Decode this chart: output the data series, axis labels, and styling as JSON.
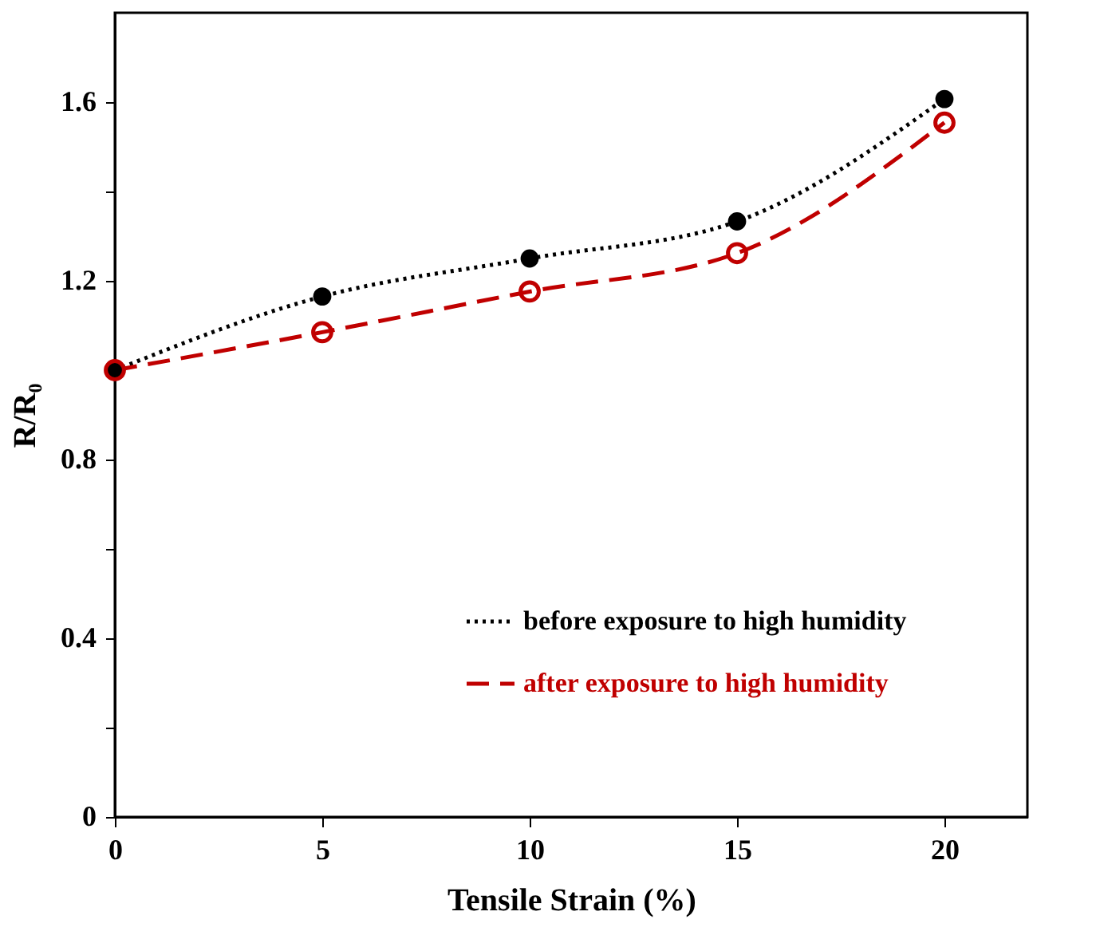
{
  "chart_data": {
    "type": "line",
    "xlabel": "Tensile Strain (%)",
    "ylabel": "R/R₀",
    "x": [
      0,
      5,
      10,
      15,
      20
    ],
    "series": [
      {
        "name": "before exposure to high humidity",
        "color": "#000000",
        "values": [
          1.0,
          1.165,
          1.25,
          1.333,
          1.607
        ],
        "marker": "circle",
        "line_style": "dotted"
      },
      {
        "name": "after exposure to high humidity",
        "color": "#c00000",
        "values": [
          1.0,
          1.085,
          1.176,
          1.262,
          1.554
        ],
        "marker": "circle",
        "line_style": "dashed"
      }
    ],
    "xlim": [
      0,
      22
    ],
    "xticks": [
      0,
      5,
      10,
      15,
      20
    ],
    "ylim": [
      0,
      1.8
    ],
    "yticks": [
      {
        "value": 0,
        "label": "0"
      },
      {
        "value": 0.2,
        "label": null
      },
      0.4,
      {
        "value": 0.6,
        "label": null
      },
      0.8,
      {
        "value": 1.0,
        "label": null
      },
      1.2,
      {
        "value": 1.4,
        "label": null
      },
      1.6
    ],
    "grid": false,
    "legend": "bottom right"
  }
}
